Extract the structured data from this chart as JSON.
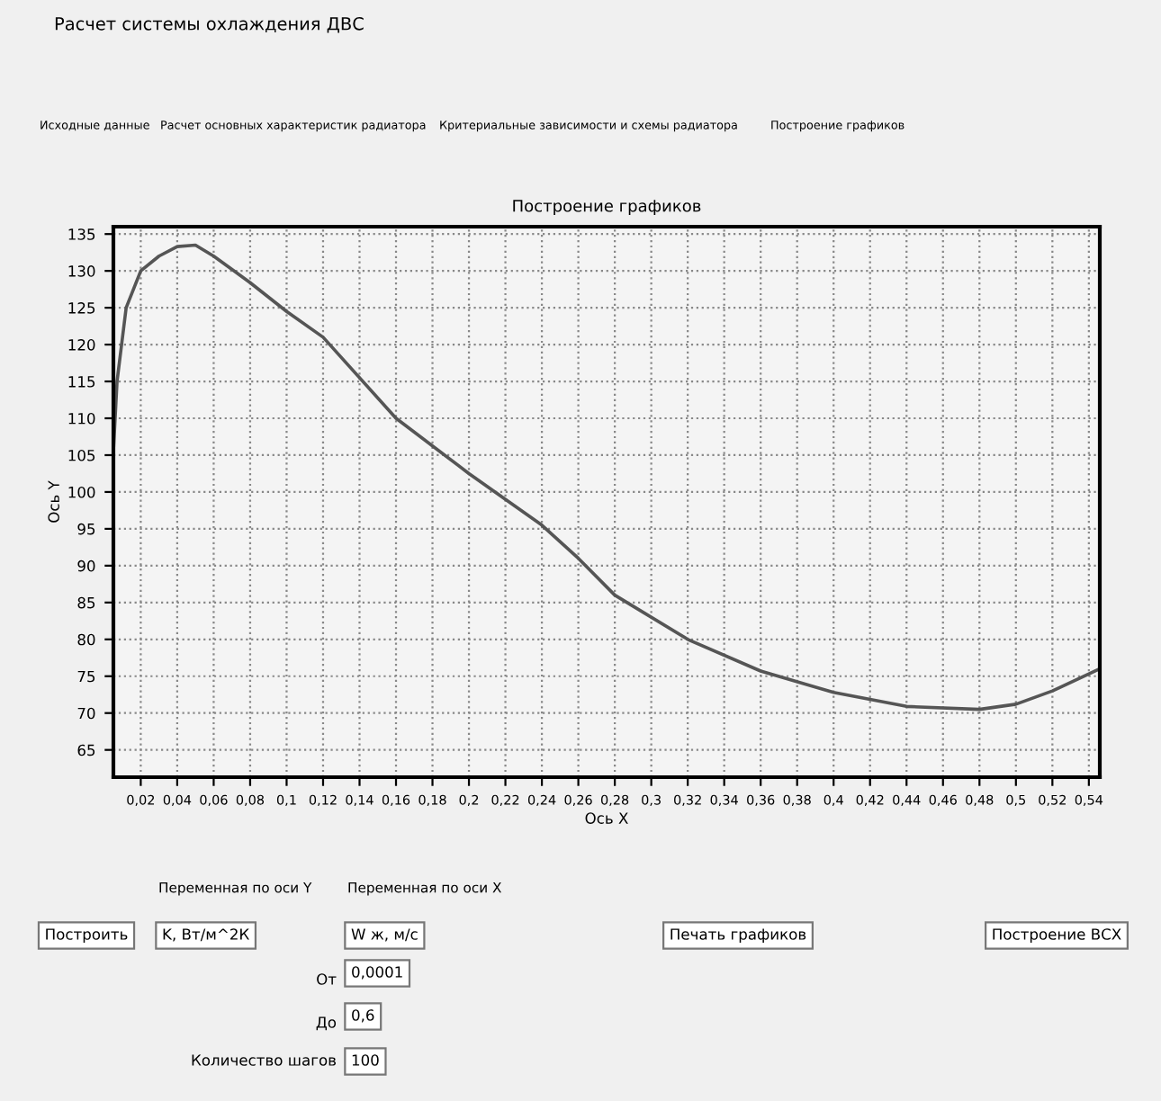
{
  "chart_data": {
    "type": "line",
    "title": "Построение графиков",
    "xlabel": "Ось X",
    "ylabel": "Ось Y",
    "x": [
      0.005,
      0.007,
      0.012,
      0.02,
      0.03,
      0.04,
      0.05,
      0.06,
      0.08,
      0.1,
      0.12,
      0.16,
      0.2,
      0.24,
      0.26,
      0.28,
      0.32,
      0.36,
      0.4,
      0.44,
      0.48,
      0.5,
      0.52,
      0.546
    ],
    "series": [
      {
        "color": "#555555",
        "values": [
          105.5,
          115,
          125,
          130,
          132,
          133.3,
          133.5,
          132,
          128.4,
          124.5,
          121,
          110,
          102.5,
          95.5,
          91,
          86,
          80,
          75.7,
          72.8,
          70.9,
          70.5,
          71.2,
          73,
          76
        ]
      }
    ],
    "xlim": [
      0.005,
      0.546
    ],
    "ylim": [
      61.3,
      136
    ],
    "xticks": [
      {
        "value": 0.02,
        "label": "0,02"
      },
      {
        "value": 0.04,
        "label": "0,04"
      },
      {
        "value": 0.06,
        "label": "0,06"
      },
      {
        "value": 0.08,
        "label": "0,08"
      },
      {
        "value": 0.1,
        "label": "0,1"
      },
      {
        "value": 0.12,
        "label": "0,12"
      },
      {
        "value": 0.14,
        "label": "0,14"
      },
      {
        "value": 0.16,
        "label": "0,16"
      },
      {
        "value": 0.18,
        "label": "0,18"
      },
      {
        "value": 0.2,
        "label": "0,2"
      },
      {
        "value": 0.22,
        "label": "0,22"
      },
      {
        "value": 0.24,
        "label": "0,24"
      },
      {
        "value": 0.26,
        "label": "0,26"
      },
      {
        "value": 0.28,
        "label": "0,28"
      },
      {
        "value": 0.3,
        "label": "0,3"
      },
      {
        "value": 0.32,
        "label": "0,32"
      },
      {
        "value": 0.34,
        "label": "0,34"
      },
      {
        "value": 0.36,
        "label": "0,36"
      },
      {
        "value": 0.38,
        "label": "0,38"
      },
      {
        "value": 0.4,
        "label": "0,4"
      },
      {
        "value": 0.42,
        "label": "0,42"
      },
      {
        "value": 0.44,
        "label": "0,44"
      },
      {
        "value": 0.46,
        "label": "0,46"
      },
      {
        "value": 0.48,
        "label": "0,48"
      },
      {
        "value": 0.5,
        "label": "0,5"
      },
      {
        "value": 0.52,
        "label": "0,52"
      },
      {
        "value": 0.54,
        "label": "0,54"
      }
    ],
    "yticks": [
      65,
      70,
      75,
      80,
      85,
      90,
      95,
      100,
      105,
      110,
      115,
      120,
      125,
      130,
      135
    ],
    "grid": true,
    "marker": "none",
    "line_style": "solid",
    "annotations": [
      "Расчет системы охлаждения ДВС",
      "Исходные данные",
      "Расчет основных характеристик радиатора",
      "Критериальные зависимости и схемы радиатора",
      "Построение графиков",
      "Построить",
      "Переменная по оси Y",
      "K, Вт/м^2К",
      "Переменная по оси X",
      "W ж, м/с",
      "Печать графиков",
      "Построение ВСХ",
      "От",
      "0,0001",
      "До",
      "0,6",
      "Количество шагов",
      "100"
    ]
  }
}
